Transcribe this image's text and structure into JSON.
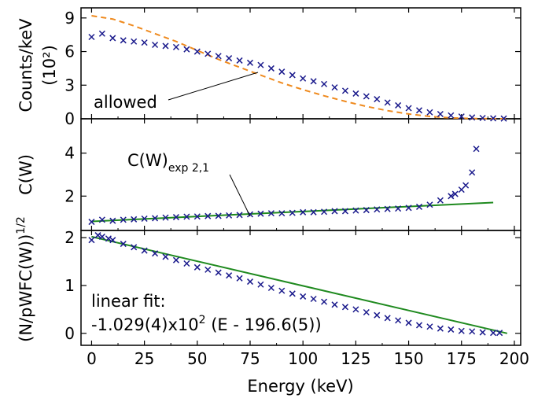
{
  "figure": {
    "xlabel": "Energy (keV)",
    "x_ticks": [
      "0",
      "25",
      "50",
      "75",
      "100",
      "125",
      "150",
      "175",
      "200"
    ]
  },
  "colors": {
    "data_points": "#1a1a8c",
    "allowed_curve": "#ef8a1e",
    "fit_line": "#1f8a1f",
    "axes": "#000000"
  },
  "chart_data": [
    {
      "type": "scatter",
      "panel": "top",
      "ylabel": "Counts/keV",
      "yunit": "(10²)",
      "y_ticks": [
        "0",
        "3",
        "6",
        "9"
      ],
      "xlim": [
        -5,
        203
      ],
      "ylim": [
        0,
        9.9
      ],
      "annotation": "allowed",
      "series": [
        {
          "name": "",
          "marker": "x",
          "x": [
            0,
            5,
            10,
            15,
            20,
            25,
            30,
            35,
            40,
            45,
            50,
            55,
            60,
            65,
            70,
            75,
            80,
            85,
            90,
            95,
            100,
            105,
            110,
            115,
            120,
            125,
            130,
            135,
            140,
            145,
            150,
            155,
            160,
            165,
            170,
            175,
            180,
            185,
            190,
            195
          ],
          "y": [
            7.3,
            7.6,
            7.2,
            7.0,
            6.9,
            6.8,
            6.6,
            6.5,
            6.4,
            6.2,
            6.0,
            5.8,
            5.6,
            5.4,
            5.2,
            5.0,
            4.8,
            4.5,
            4.2,
            3.9,
            3.6,
            3.35,
            3.1,
            2.8,
            2.5,
            2.25,
            2.0,
            1.75,
            1.45,
            1.2,
            0.95,
            0.75,
            0.58,
            0.42,
            0.3,
            0.2,
            0.12,
            0.07,
            0.04,
            0.02
          ]
        },
        {
          "name": "allowed",
          "style": "dashed",
          "x": [
            0,
            10,
            20,
            30,
            40,
            50,
            60,
            70,
            80,
            90,
            100,
            110,
            120,
            130,
            140,
            150,
            160,
            170,
            180,
            190,
            196
          ],
          "y": [
            9.2,
            8.9,
            8.3,
            7.6,
            6.9,
            6.1,
            5.3,
            4.6,
            3.9,
            3.2,
            2.6,
            2.05,
            1.55,
            1.1,
            0.72,
            0.43,
            0.21,
            0.08,
            0.02,
            0.0,
            0.0
          ]
        }
      ]
    },
    {
      "type": "scatter",
      "panel": "middle",
      "ylabel": "C(W)",
      "y_ticks": [
        "2",
        "4"
      ],
      "xlim": [
        -5,
        203
      ],
      "ylim": [
        0.4,
        5.6
      ],
      "annotation_main": "C(W)",
      "annotation_sub": "exp 2,1",
      "series": [
        {
          "name": "",
          "marker": "x",
          "x": [
            0,
            5,
            10,
            15,
            20,
            25,
            30,
            35,
            40,
            45,
            50,
            55,
            60,
            65,
            70,
            75,
            80,
            85,
            90,
            95,
            100,
            105,
            110,
            115,
            120,
            125,
            130,
            135,
            140,
            145,
            150,
            155,
            160,
            165,
            170,
            172,
            175,
            177,
            180,
            182
          ],
          "y": [
            0.8,
            0.9,
            0.85,
            0.9,
            0.92,
            0.95,
            0.97,
            1.0,
            1.02,
            1.04,
            1.05,
            1.07,
            1.08,
            1.1,
            1.12,
            1.15,
            1.18,
            1.2,
            1.2,
            1.22,
            1.25,
            1.25,
            1.27,
            1.3,
            1.3,
            1.33,
            1.35,
            1.38,
            1.4,
            1.42,
            1.45,
            1.5,
            1.6,
            1.8,
            2.0,
            2.1,
            2.3,
            2.5,
            3.1,
            4.2
          ]
        },
        {
          "name": "C(W)exp 2,1",
          "style": "solid",
          "x": [
            0,
            190
          ],
          "y": [
            0.82,
            1.7
          ]
        }
      ]
    },
    {
      "type": "scatter",
      "panel": "bottom",
      "ylabel": "(N/pWFC(W))",
      "ylabel_sup": "1/2",
      "y_ticks": [
        "0",
        "1",
        "2"
      ],
      "xlim": [
        -5,
        203
      ],
      "ylim": [
        -0.25,
        2.15
      ],
      "annotation_line1": "linear fit:",
      "annotation_line2_pre": "-1.029(4)x10",
      "annotation_line2_sup": "2",
      "annotation_line2_post": " (E - 196.6(5))",
      "series": [
        {
          "name": "",
          "marker": "x",
          "x": [
            0,
            3,
            5,
            8,
            10,
            15,
            20,
            25,
            30,
            35,
            40,
            45,
            50,
            55,
            60,
            65,
            70,
            75,
            80,
            85,
            90,
            95,
            100,
            105,
            110,
            115,
            120,
            125,
            130,
            135,
            140,
            145,
            150,
            155,
            160,
            165,
            170,
            175,
            180,
            185,
            190,
            193
          ],
          "y": [
            1.95,
            2.05,
            2.02,
            1.98,
            1.95,
            1.87,
            1.8,
            1.73,
            1.67,
            1.6,
            1.53,
            1.46,
            1.38,
            1.33,
            1.27,
            1.21,
            1.15,
            1.08,
            1.02,
            0.95,
            0.89,
            0.83,
            0.77,
            0.72,
            0.66,
            0.6,
            0.55,
            0.5,
            0.44,
            0.38,
            0.32,
            0.27,
            0.22,
            0.17,
            0.14,
            0.1,
            0.08,
            0.05,
            0.04,
            0.02,
            0.01,
            0.01
          ]
        },
        {
          "name": "linear fit",
          "style": "solid",
          "x": [
            0,
            196.6
          ],
          "y": [
            2.02,
            0.0
          ]
        }
      ]
    }
  ]
}
